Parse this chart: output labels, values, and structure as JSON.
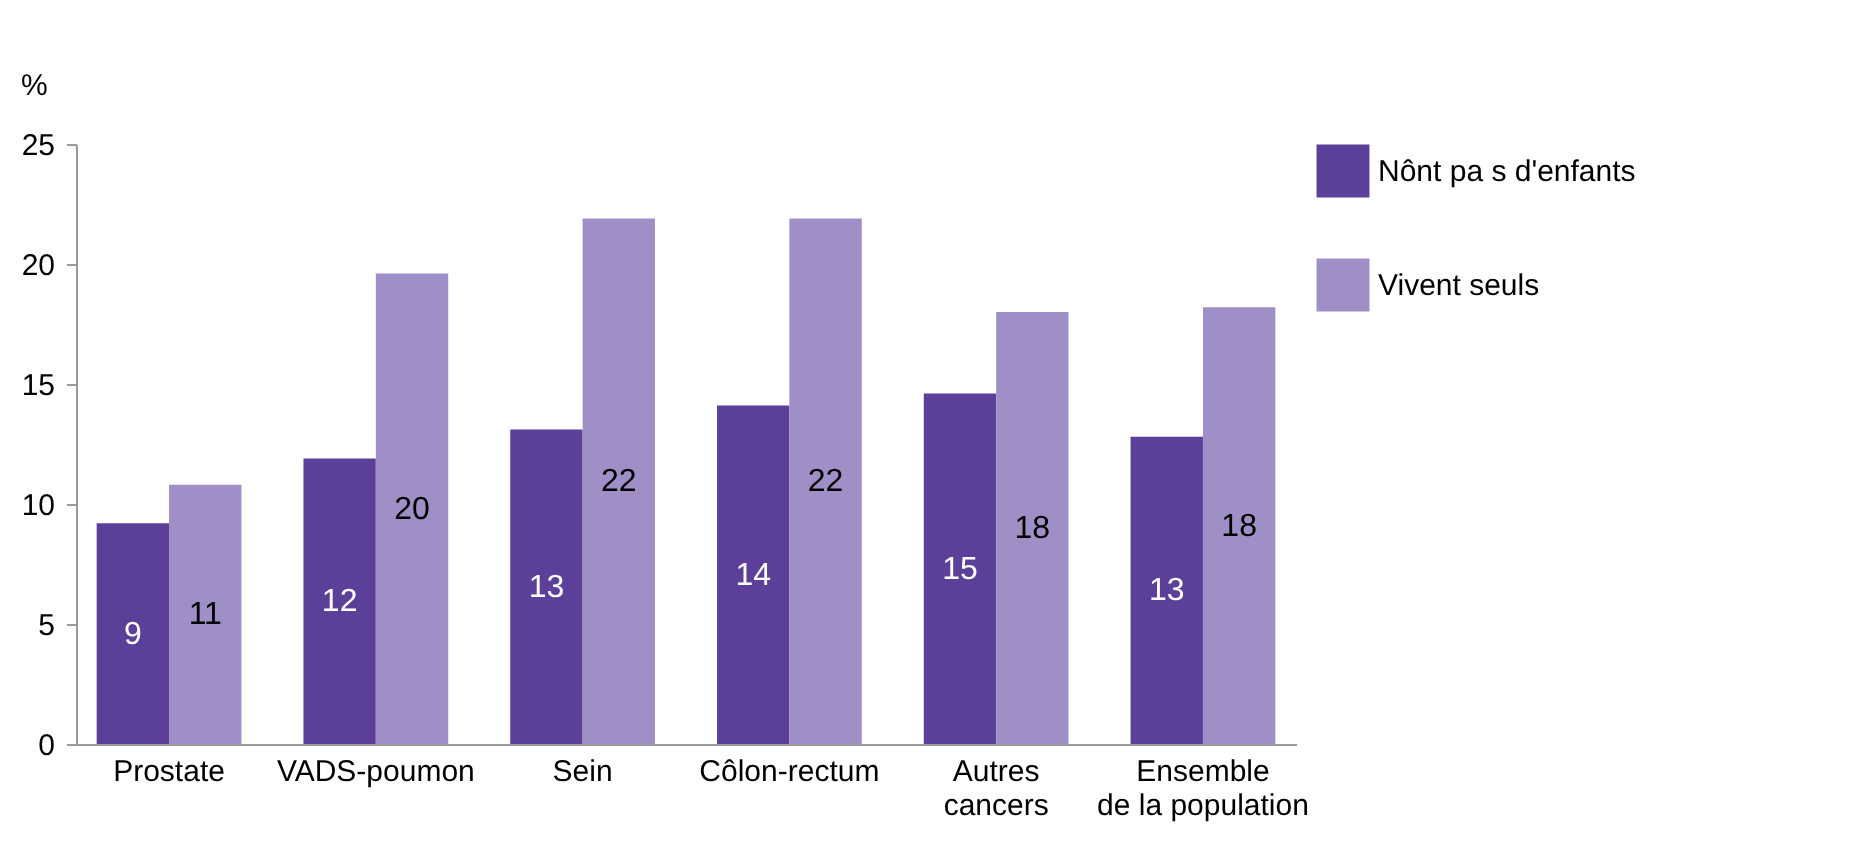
{
  "chart_data": {
    "type": "bar",
    "ylabel": "%",
    "categories": [
      "Prostate",
      "VADS-poumon",
      "Sein",
      "Côlon-rectum",
      "Autres cancers",
      "Ensemble de la population"
    ],
    "series": [
      {
        "name": "Nônt pa s d'enfants",
        "color": "#5b3f98",
        "values": [
          9.2,
          11.9,
          13.1,
          14.1,
          14.6,
          12.8
        ],
        "value_labels": [
          "9",
          "12",
          "13",
          "14",
          "15",
          "13"
        ]
      },
      {
        "name": "Vivent seuls",
        "color": "#a08fc6",
        "values": [
          10.8,
          19.6,
          21.9,
          21.9,
          18.0,
          18.2
        ],
        "value_labels": [
          "11",
          "20",
          "22",
          "22",
          "18",
          "18"
        ]
      }
    ],
    "ylim": [
      0,
      25
    ],
    "yticks": [
      0,
      5,
      10,
      15,
      20,
      25
    ],
    "grid": false,
    "legend": "right"
  }
}
